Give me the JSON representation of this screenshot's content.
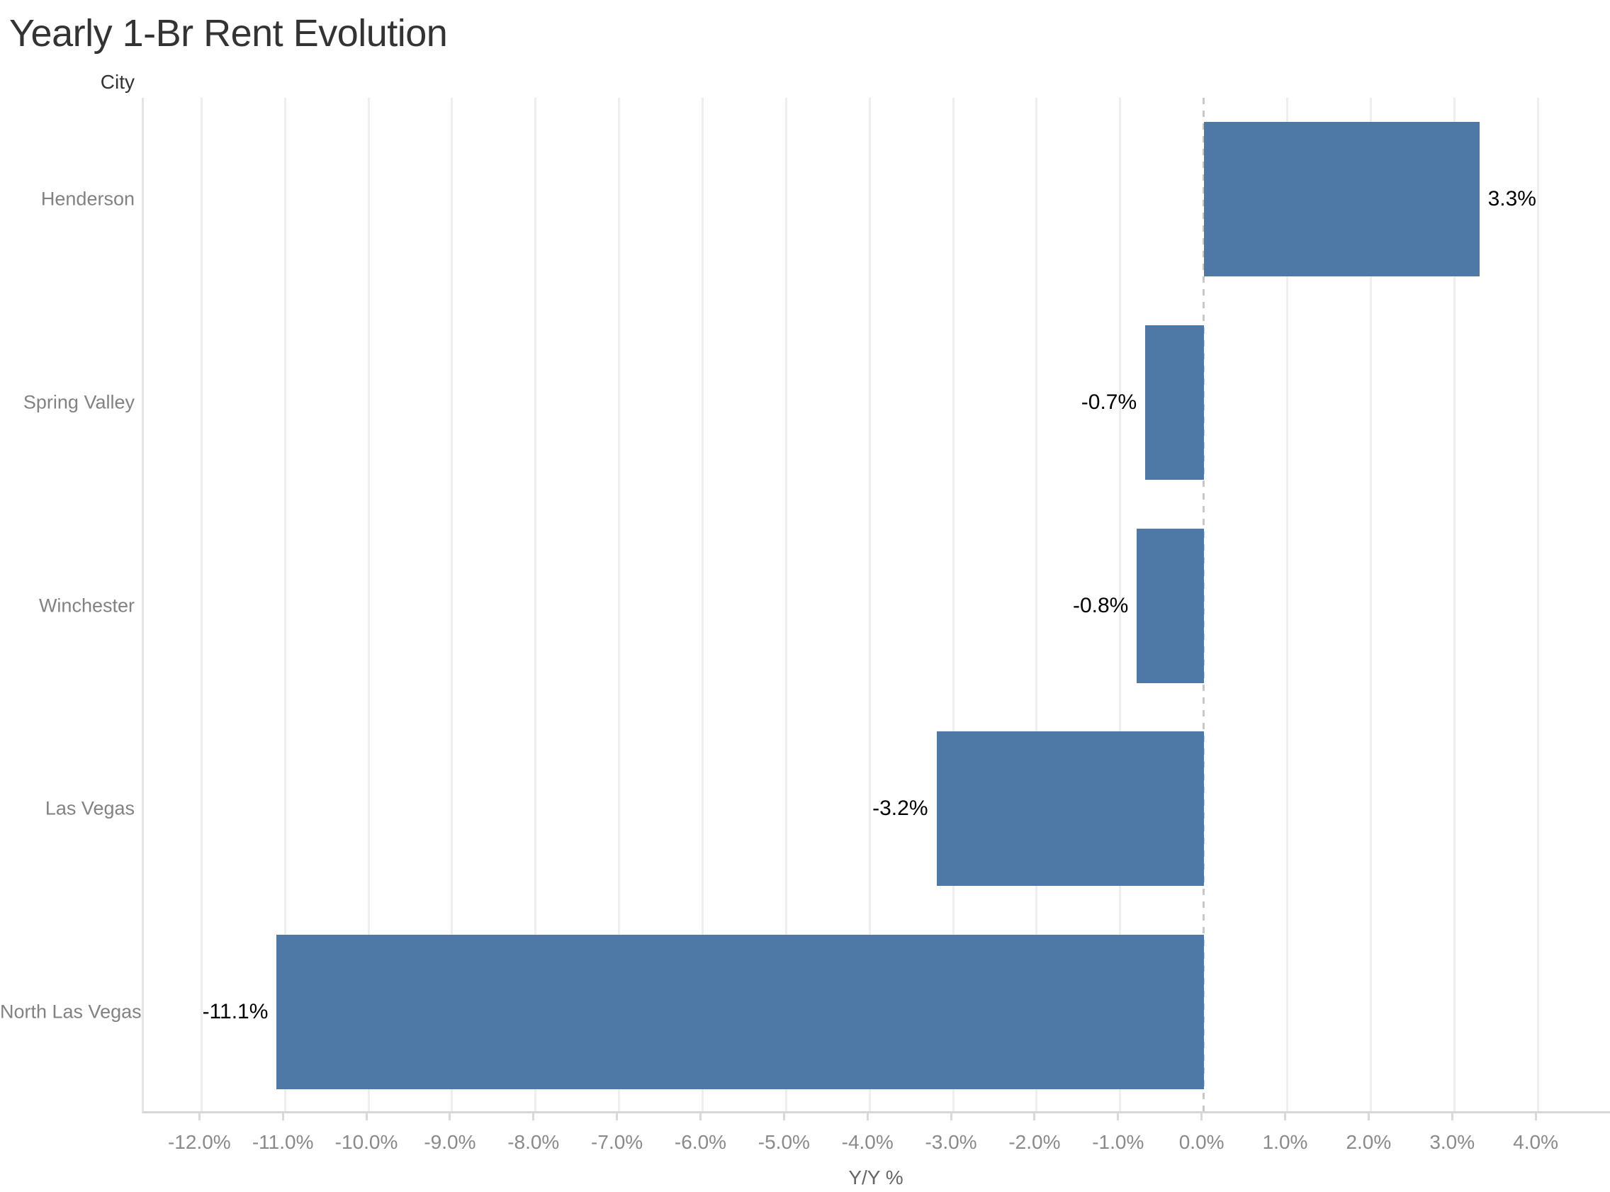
{
  "chart_data": {
    "type": "bar",
    "orientation": "horizontal",
    "title": "Yearly 1-Br Rent Evolution",
    "ylabel": "City",
    "xlabel": "Y/Y %",
    "categories": [
      "Henderson",
      "Spring Valley",
      "Winchester",
      "Las Vegas",
      "North Las Vegas"
    ],
    "values": [
      3.3,
      -0.7,
      -0.8,
      -3.2,
      -11.1
    ],
    "value_labels": [
      "3.3%",
      "-0.7%",
      "-0.8%",
      "-3.2%",
      "-11.1%"
    ],
    "xlim": [
      -12.69,
      4.89
    ],
    "xticks": [
      {
        "value": -12,
        "label": "-12.0%"
      },
      {
        "value": -11,
        "label": "-11.0%"
      },
      {
        "value": -10,
        "label": "-10.0%"
      },
      {
        "value": -9,
        "label": "-9.0%"
      },
      {
        "value": -8,
        "label": "-8.0%"
      },
      {
        "value": -7,
        "label": "-7.0%"
      },
      {
        "value": -6,
        "label": "-6.0%"
      },
      {
        "value": -5,
        "label": "-5.0%"
      },
      {
        "value": -4,
        "label": "-4.0%"
      },
      {
        "value": -3,
        "label": "-3.0%"
      },
      {
        "value": -2,
        "label": "-2.0%"
      },
      {
        "value": -1,
        "label": "-1.0%"
      },
      {
        "value": 0,
        "label": "0.0%"
      },
      {
        "value": 1,
        "label": "1.0%"
      },
      {
        "value": 2,
        "label": "2.0%"
      },
      {
        "value": 3,
        "label": "3.0%"
      },
      {
        "value": 4,
        "label": "4.0%"
      }
    ],
    "grid": "vertical-on",
    "legend": "none",
    "zero_line": "dashed",
    "colors": {
      "bar": "#4e79a7",
      "grid": "#eeeeee",
      "zero_line": "#c8c8c8",
      "axis_line": "#d7d7d7",
      "tick_label": "#8a8a8a",
      "category_label": "#828282",
      "value_label": "#000000",
      "title": "#333333"
    }
  }
}
